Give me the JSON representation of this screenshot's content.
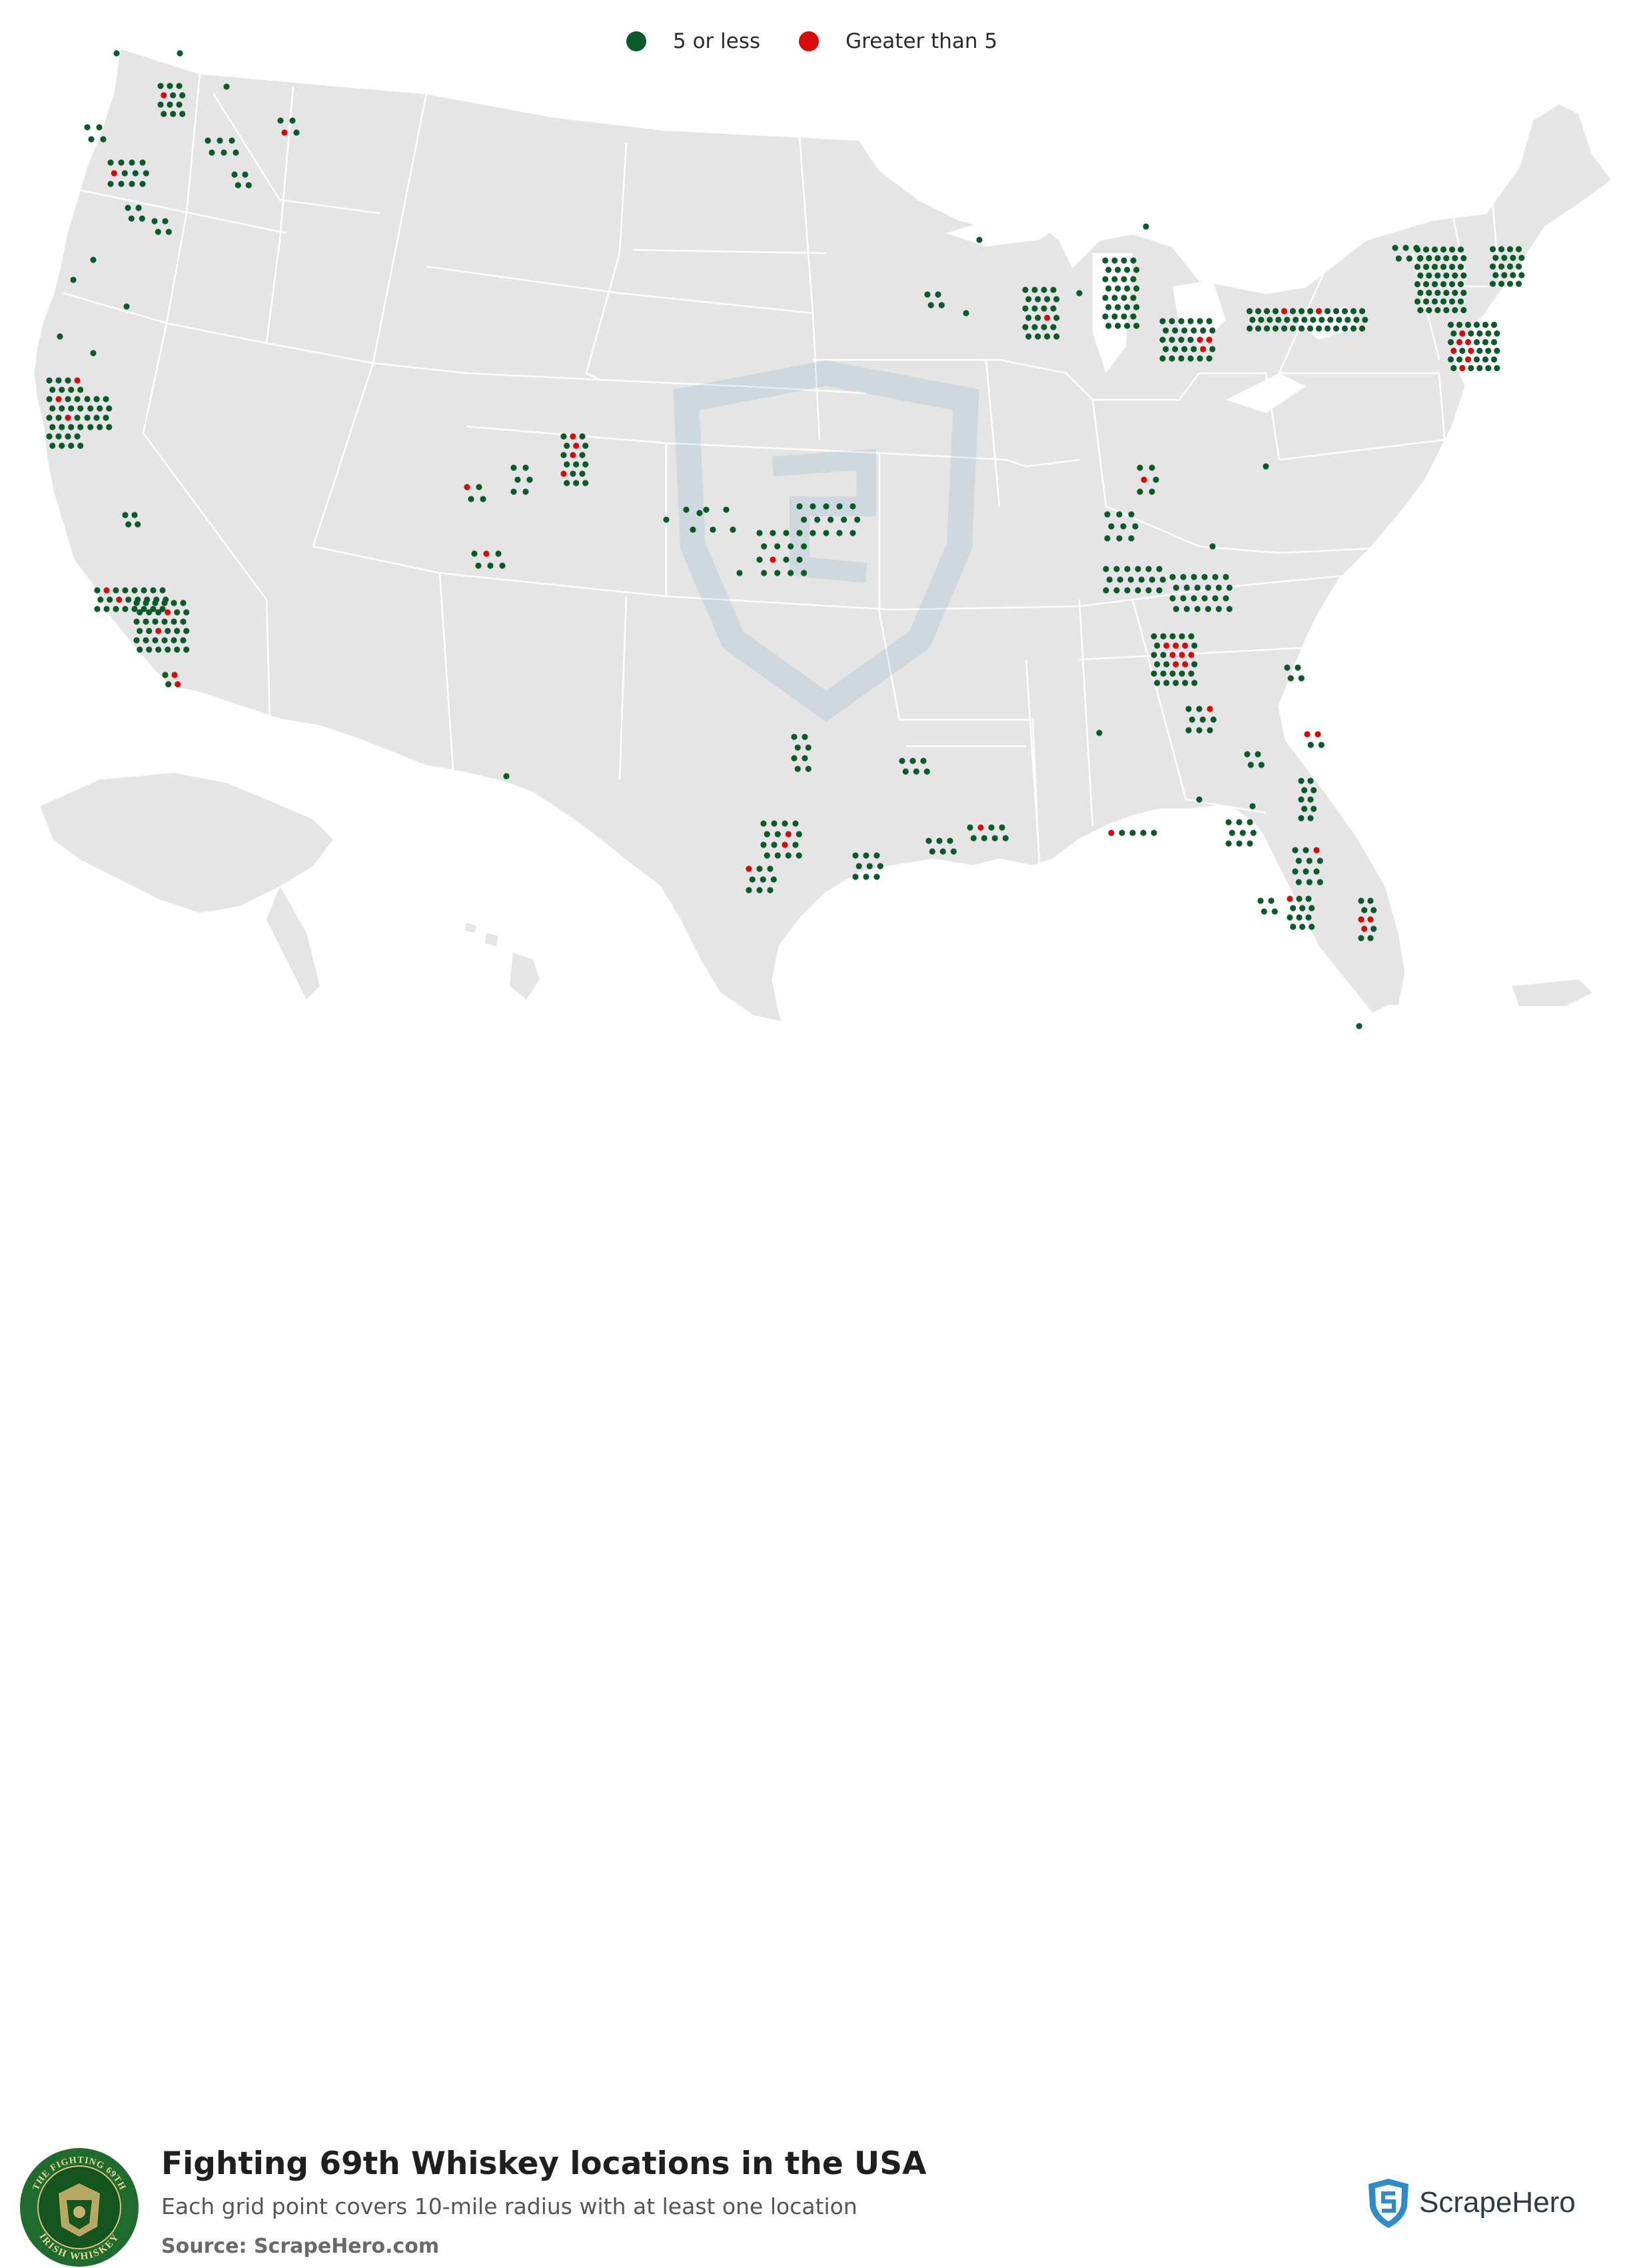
{
  "legend": {
    "items": [
      {
        "label": "5 or less",
        "color": "#0b5a2a"
      },
      {
        "label": "Greater than 5",
        "color": "#d80a0a"
      }
    ]
  },
  "footer": {
    "title": "Fighting 69th Whiskey locations in the USA",
    "subtitle": "Each grid point covers 10-mile radius with at least one location",
    "source_label": "Source:",
    "source_value": "ScrapeHero.com",
    "brand": "ScrapeHero",
    "logo_text_top": "THE FIGHTING 69TH",
    "logo_text_bottom": "IRISH WHISKEY"
  },
  "map": {
    "land_color": "#e5e5e5",
    "border_color": "#ffffff",
    "green_dot_color": "#0b5a2a",
    "red_dot_color": "#d80a0a"
  }
}
